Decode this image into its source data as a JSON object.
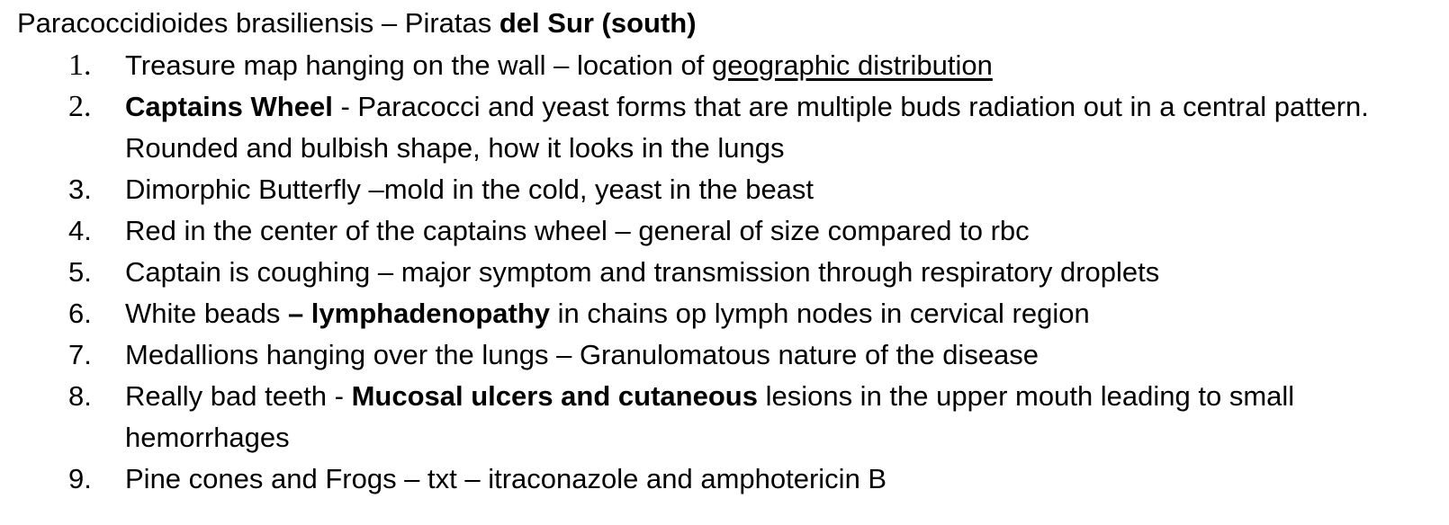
{
  "title": {
    "prefix": "Paracoccidioides brasiliensis – Piratas ",
    "bold": "del Sur (south)"
  },
  "items": [
    {
      "number": "1.",
      "segments": [
        {
          "text": "Treasure map hanging on the wall – location of ",
          "style": "normal"
        },
        {
          "text": "geographic distribution",
          "style": "underline"
        }
      ]
    },
    {
      "number": "2.",
      "segments": [
        {
          "text": "Captains Wheel",
          "style": "bold"
        },
        {
          "text": " - Paracocci and yeast forms that are multiple buds radiation out in a central pattern. Rounded and bulbish shape, how it looks in the lungs",
          "style": "normal"
        }
      ]
    },
    {
      "number": "3.",
      "segments": [
        {
          "text": "Dimorphic Butterfly –mold in the cold, yeast in the beast",
          "style": "normal"
        }
      ]
    },
    {
      "number": "4.",
      "segments": [
        {
          "text": "Red in the center of the captains wheel – general of size compared to rbc",
          "style": "normal"
        }
      ]
    },
    {
      "number": "5.",
      "segments": [
        {
          "text": "Captain is coughing – major symptom and transmission through respiratory droplets",
          "style": "normal"
        }
      ]
    },
    {
      "number": "6.",
      "segments": [
        {
          "text": "White beads ",
          "style": "normal"
        },
        {
          "text": "– lymphadenopathy",
          "style": "bold"
        },
        {
          "text": " in chains op lymph nodes in cervical region",
          "style": "normal"
        }
      ]
    },
    {
      "number": "7.",
      "segments": [
        {
          "text": "Medallions hanging over the lungs – Granulomatous nature of the disease",
          "style": "normal"
        }
      ]
    },
    {
      "number": "8.",
      "segments": [
        {
          "text": "Really bad teeth - ",
          "style": "normal"
        },
        {
          "text": "Mucosal ulcers and cutaneous",
          "style": "bold"
        },
        {
          "text": " lesions in the upper mouth leading to small hemorrhages",
          "style": "normal"
        }
      ]
    },
    {
      "number": "9.",
      "segments": [
        {
          "text": "Pine cones and Frogs – txt – itraconazole and amphotericin B",
          "style": "normal"
        }
      ]
    }
  ]
}
